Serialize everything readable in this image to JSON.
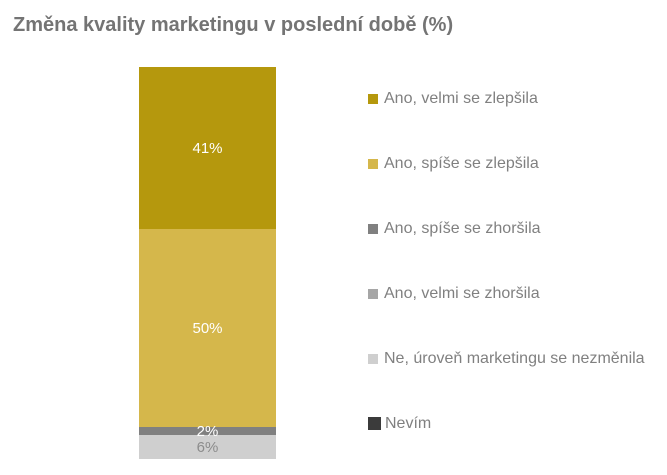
{
  "title": "Změna kvality marketingu v poslední době (%)",
  "style": {
    "background": "#FFFFFF",
    "title_color": "#747474",
    "legend_text_color": "#808080"
  },
  "chart_data": {
    "type": "bar",
    "subtype": "stacked-column-single",
    "title": "Změna kvality marketingu v poslední době (%)",
    "unit": "%",
    "ylim": [
      0,
      100
    ],
    "grid": false,
    "axes_visible": false,
    "legend_position": "right",
    "segments_order": "top-to-bottom",
    "items": [
      {
        "label": "Ano, velmi se zlepšila",
        "value": 41,
        "color": "#B5980D",
        "data_label": "41%",
        "data_label_color": "#FFFFFF"
      },
      {
        "label": "Ano, spíše se zlepšila",
        "value": 50,
        "color": "#D5B74B",
        "data_label": "50%",
        "data_label_color": "#FFFFFF"
      },
      {
        "label": "Ano, spíše se zhoršila",
        "value": 2,
        "color": "#808080",
        "data_label": "2%",
        "data_label_color": "#FFFFFF"
      },
      {
        "label": "Ano, velmi se zhoršila",
        "value": 0,
        "color": "#A6A6A6",
        "data_label": "",
        "data_label_color": "#FFFFFF"
      },
      {
        "label": "Ne, úroveň marketingu se nezměnila",
        "value": 6,
        "color": "#CFCFCF",
        "data_label": "6%",
        "data_label_color": "#8C8C8C"
      },
      {
        "label": "Nevím",
        "value": 0,
        "color": "#3B3B3B",
        "data_label": "",
        "data_label_color": "#FFFFFF"
      }
    ]
  }
}
